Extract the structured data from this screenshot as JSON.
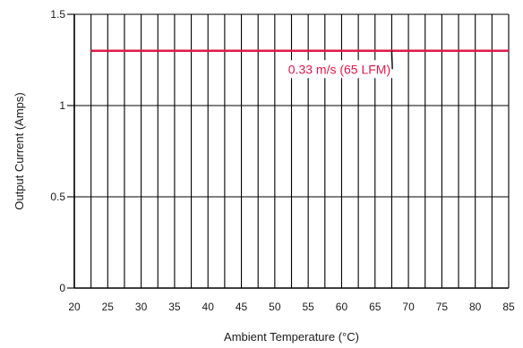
{
  "chart_data": {
    "type": "line",
    "title": "",
    "xlabel": "Ambient Temperature (°C)",
    "ylabel": "Output Current (Amps)",
    "xlim": [
      20,
      85
    ],
    "ylim": [
      0,
      1.5
    ],
    "x_ticks": [
      20,
      25,
      30,
      35,
      40,
      45,
      50,
      55,
      60,
      65,
      70,
      75,
      80,
      85
    ],
    "x_tick_labels": [
      "20",
      "25",
      "30",
      "35",
      "40",
      "45",
      "50",
      "55",
      "60",
      "65",
      "70",
      "75",
      "80",
      "85"
    ],
    "y_ticks": [
      0,
      0.5,
      1,
      1.5
    ],
    "y_tick_labels": [
      "0",
      "0.5",
      "1",
      "1.5"
    ],
    "x_minor_step": 2.5,
    "grid": true,
    "series": [
      {
        "name": "0.33 m/s (65 LFM)",
        "color": "#e0184a",
        "x": [
          22.5,
          85
        ],
        "y": [
          1.3,
          1.3
        ]
      }
    ],
    "annotation": {
      "text": "0.33 m/s (65 LFM)",
      "color": "#e0184a",
      "point": [
        67.5,
        1.3
      ],
      "label_at": [
        52,
        1.18
      ]
    }
  }
}
